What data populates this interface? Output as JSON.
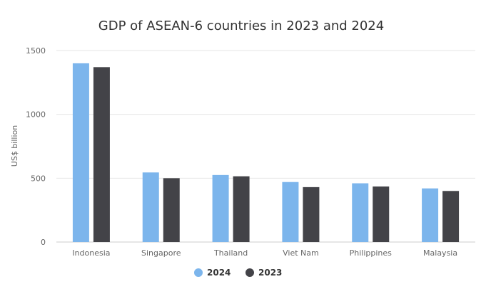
{
  "chart_data": {
    "type": "bar",
    "title": "GDP of ASEAN-6 countries in 2023 and 2024",
    "xlabel": "",
    "ylabel": "US$ billion",
    "ylim": [
      0,
      1500
    ],
    "yticks": [
      0,
      500,
      1000,
      1500
    ],
    "grid": true,
    "legend_position": "bottom",
    "categories": [
      "Indonesia",
      "Singapore",
      "Thailand",
      "Viet Nam",
      "Philippines",
      "Malaysia"
    ],
    "series": [
      {
        "name": "2024",
        "color": "#7cb5ec",
        "values": [
          1400,
          545,
          525,
          470,
          460,
          420
        ]
      },
      {
        "name": "2023",
        "color": "#434348",
        "values": [
          1370,
          500,
          515,
          430,
          435,
          400
        ]
      }
    ]
  }
}
